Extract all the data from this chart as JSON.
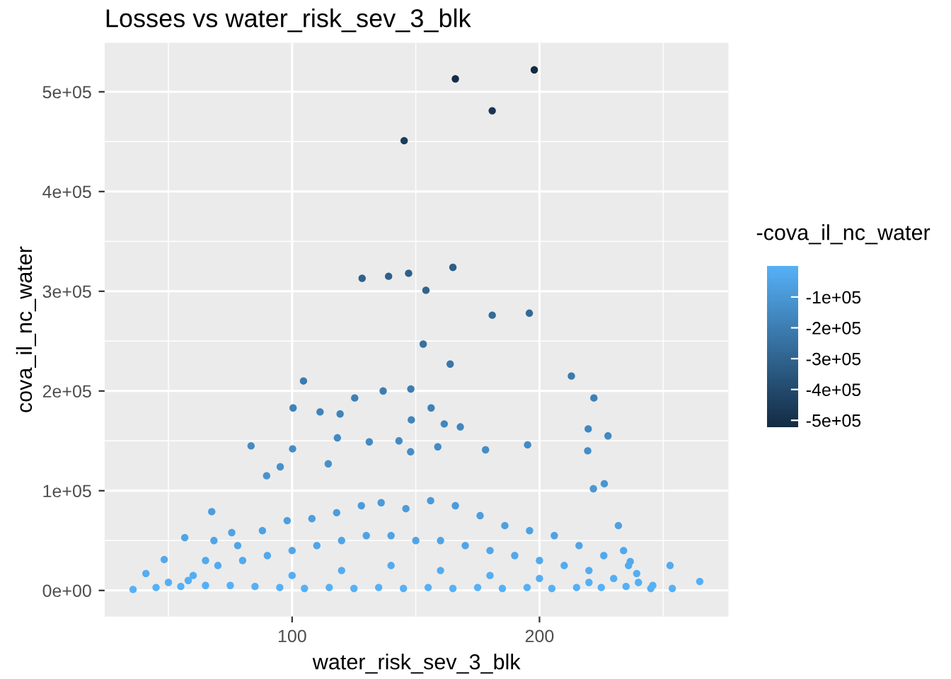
{
  "chart_data": {
    "type": "scatter",
    "title": "Losses vs water_risk_sev_3_blk",
    "xlabel": "water_risk_sev_3_blk",
    "ylabel": "cova_il_nc_water",
    "clabel": "-cova_il_nc_water",
    "xlim": [
      24.2,
      276.4
    ],
    "ylim": [
      -26150,
      549150
    ],
    "xticks": [
      100,
      200
    ],
    "yticks": [
      {
        "value": 0,
        "label": "0e+00"
      },
      {
        "value": 100000,
        "label": "1e+05"
      },
      {
        "value": 200000,
        "label": "2e+05"
      },
      {
        "value": 300000,
        "label": "3e+05"
      },
      {
        "value": 400000,
        "label": "4e+05"
      },
      {
        "value": 500000,
        "label": "5e+05"
      }
    ],
    "clim": [
      -522000,
      0
    ],
    "cticks": [
      {
        "value": -100000,
        "label": "-1e+05"
      },
      {
        "value": -200000,
        "label": "-2e+05"
      },
      {
        "value": -300000,
        "label": "-3e+05"
      },
      {
        "value": -400000,
        "label": "-4e+05"
      },
      {
        "value": -500000,
        "label": "-5e+05"
      }
    ],
    "grid": true,
    "marker": "circle",
    "series": [
      {
        "x": [
          166.0,
          197.9,
          180.9,
          145.3,
          128.3,
          139.0,
          147.1,
          165.0,
          154.1,
          180.9,
          195.9,
          153.0,
          163.9,
          104.6,
          212.9,
          222.0,
          100.4,
          136.8,
          148.0,
          125.3,
          111.3,
          119.4,
          156.2,
          219.7,
          227.7,
          195.2,
          83.4,
          100.2,
          148.2,
          161.5,
          168.0,
          178.2,
          219.5,
          89.7,
          95.2,
          221.8,
          226.2,
          231.9,
          234.0,
          239.3,
          252.8,
          264.8,
          253.7,
          35.7,
          40.9,
          48.3,
          56.6,
          67.5,
          68.4,
          75.6,
          245.8,
          236.7,
          114.6,
          118.3,
          131.2,
          143.2,
          147.9,
          158.9,
          45,
          55,
          65,
          75,
          85,
          95,
          105,
          115,
          125,
          135,
          145,
          155,
          165,
          175,
          185,
          195,
          205,
          215,
          225,
          235,
          245,
          60,
          70,
          80,
          90,
          100,
          110,
          120,
          130,
          140,
          150,
          160,
          170,
          180,
          190,
          200,
          210,
          220,
          230,
          240,
          65,
          78,
          88,
          98,
          108,
          118,
          128,
          136,
          146,
          156,
          166,
          176,
          186,
          196,
          206,
          216,
          226,
          236,
          50,
          58,
          100,
          120,
          140,
          160,
          180,
          200,
          220
        ],
        "values": [
          513000,
          522000,
          481000,
          451000,
          313000,
          315000,
          318000,
          324000,
          301000,
          276000,
          278000,
          247000,
          227000,
          210000,
          215000,
          193000,
          183000,
          200000,
          202000,
          193000,
          179000,
          177000,
          183000,
          162000,
          155000,
          146000,
          145000,
          142000,
          171000,
          167000,
          164000,
          141000,
          140000,
          115000,
          124000,
          102000,
          107000,
          65000,
          40000,
          17000,
          25000,
          9000,
          2000,
          1000,
          17000,
          31000,
          53000,
          79000,
          50000,
          58000,
          5000,
          29000,
          127000,
          153000,
          149000,
          150000,
          139000,
          144000,
          3000,
          4000,
          5000,
          5000,
          4000,
          3000,
          2000,
          3000,
          2000,
          3000,
          2000,
          3000,
          2000,
          3000,
          2000,
          3000,
          2000,
          3000,
          3000,
          4000,
          2000,
          15000,
          25000,
          30000,
          35000,
          40000,
          45000,
          50000,
          55000,
          55000,
          50000,
          50000,
          45000,
          40000,
          35000,
          30000,
          25000,
          20000,
          12000,
          8000,
          30000,
          45000,
          60000,
          70000,
          72000,
          78000,
          85000,
          88000,
          82000,
          90000,
          85000,
          75000,
          65000,
          60000,
          55000,
          45000,
          35000,
          25000,
          8000,
          10000,
          15000,
          20000,
          25000,
          20000,
          15000,
          12000,
          8000
        ],
        "cvalues": [
          -513000,
          -522000,
          -481000,
          -451000,
          -313000,
          -315000,
          -318000,
          -324000,
          -301000,
          -276000,
          -278000,
          -247000,
          -227000,
          -210000,
          -215000,
          -193000,
          -183000,
          -200000,
          -202000,
          -193000,
          -179000,
          -177000,
          -183000,
          -162000,
          -155000,
          -146000,
          -145000,
          -142000,
          -171000,
          -167000,
          -164000,
          -141000,
          -140000,
          -115000,
          -124000,
          -102000,
          -107000,
          -65000,
          -40000,
          -17000,
          -25000,
          -9000,
          -2000,
          -1000,
          -17000,
          -31000,
          -53000,
          -79000,
          -50000,
          -58000,
          -5000,
          -29000,
          -127000,
          -153000,
          -149000,
          -150000,
          -139000,
          -144000,
          -3000,
          -4000,
          -5000,
          -5000,
          -4000,
          -3000,
          -2000,
          -3000,
          -2000,
          -3000,
          -2000,
          -3000,
          -2000,
          -3000,
          -2000,
          -3000,
          -2000,
          -3000,
          -3000,
          -4000,
          -2000,
          -15000,
          -25000,
          -30000,
          -35000,
          -40000,
          -45000,
          -50000,
          -55000,
          -55000,
          -50000,
          -50000,
          -45000,
          -40000,
          -35000,
          -30000,
          -25000,
          -20000,
          -12000,
          -8000,
          -30000,
          -45000,
          -60000,
          -70000,
          -72000,
          -78000,
          -85000,
          -88000,
          -82000,
          -90000,
          -85000,
          -75000,
          -65000,
          -60000,
          -55000,
          -45000,
          -35000,
          -25000,
          -8000,
          -10000,
          -15000,
          -20000,
          -25000,
          -20000,
          -15000,
          -12000,
          -8000
        ]
      }
    ]
  }
}
